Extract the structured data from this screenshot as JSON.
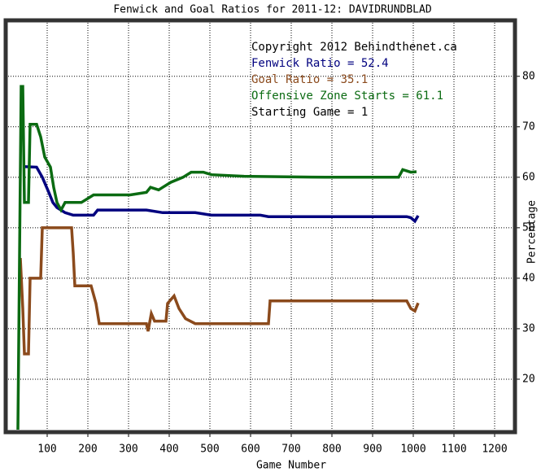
{
  "chart_data": {
    "type": "line",
    "title": "Fenwick and Goal Ratios for 2011-12: DAVIDRUNDBLAD",
    "x_label": "Game Number",
    "y_label": "Percentage",
    "xlim": [
      4,
      1244
    ],
    "ylim": [
      10,
      90.6
    ],
    "xticks": [
      100,
      200,
      300,
      400,
      500,
      600,
      700,
      800,
      900,
      1000,
      1100,
      1200
    ],
    "yticks": [
      20,
      30,
      40,
      50,
      60,
      70,
      80
    ],
    "grid": true,
    "annotations": [
      {
        "text": "Copyright 2012 Behindthenet.ca",
        "color": "#000000"
      },
      {
        "text": "Fenwick Ratio = 52.4",
        "color": "#00007f"
      },
      {
        "text": "Goal Ratio = 35.1",
        "color": "#8b4a1c"
      },
      {
        "text": "Offensive Zone Starts = 61.1",
        "color": "#0b6b12"
      },
      {
        "text": "Starting Game = 1",
        "color": "#000000"
      }
    ],
    "series": [
      {
        "name": "Fenwick Ratio",
        "color": "#00007f",
        "x": [
          44,
          74,
          88,
          104,
          114,
          124,
          144,
          164,
          214,
          224,
          344,
          384,
          464,
          504,
          624,
          644,
          984,
          994,
          1004,
          1012
        ],
        "values": [
          62.1,
          62,
          60,
          57,
          55,
          54,
          53,
          52.5,
          52.5,
          53.5,
          53.5,
          53,
          53,
          52.5,
          52.5,
          52.2,
          52.2,
          52,
          51.3,
          52.4
        ]
      },
      {
        "name": "Goal Ratio",
        "color": "#8b4a1c",
        "x": [
          34,
          40,
          44,
          54,
          58,
          84,
          88,
          160,
          164,
          168,
          208,
          220,
          228,
          344,
          348,
          356,
          364,
          392,
          396,
          412,
          424,
          440,
          464,
          644,
          648,
          984,
          994,
          1004,
          1012
        ],
        "values": [
          44,
          34,
          25,
          25,
          40,
          40,
          50,
          50,
          45,
          38.5,
          38.5,
          35,
          31,
          31,
          29.5,
          33,
          31.5,
          31.5,
          35,
          36.5,
          34,
          32,
          31,
          31,
          35.5,
          35.5,
          34,
          33.5,
          35.1
        ]
      },
      {
        "name": "Offensive Zone Starts",
        "color": "#0b6b12",
        "x": [
          28,
          36,
          40,
          44,
          54,
          58,
          74,
          84,
          94,
          108,
          116,
          124,
          134,
          144,
          184,
          204,
          214,
          304,
          344,
          354,
          374,
          384,
          404,
          434,
          454,
          484,
          504,
          584,
          784,
          964,
          974,
          994,
          1008
        ],
        "values": [
          10,
          78,
          78,
          55,
          55,
          70.5,
          70.5,
          68,
          64,
          62,
          58,
          55,
          53.5,
          55,
          55,
          56,
          56.5,
          56.5,
          57,
          58,
          57.5,
          58,
          59,
          60,
          61,
          61,
          60.5,
          60.2,
          60,
          60,
          61.5,
          61,
          61.1
        ]
      }
    ]
  }
}
